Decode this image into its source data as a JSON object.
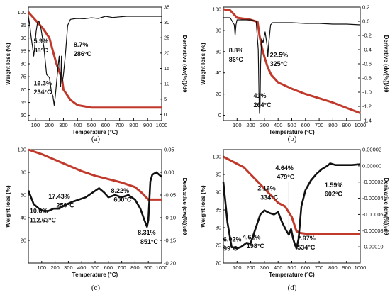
{
  "colors": {
    "weight_loss": "#c0392b",
    "derivative": "#111111",
    "axis": "#111111"
  },
  "chart_data": [
    {
      "type": "line",
      "panel_label": "(a)",
      "xlabel": "Temperature (°C)",
      "ylabel": "Weight loss (%)",
      "y2label": "Derivative (dw(%))/dθ",
      "xlim": [
        50,
        1000
      ],
      "ylim": [
        58,
        102
      ],
      "y2lim": [
        -2,
        35
      ],
      "x_ticks": [
        "100",
        "200",
        "300",
        "400",
        "500",
        "600",
        "700",
        "800",
        "900",
        "1000"
      ],
      "y_ticks": [
        "60",
        "65",
        "70",
        "75",
        "80",
        "85",
        "90",
        "95",
        "100"
      ],
      "y2_ticks": [
        "0",
        "5",
        "10",
        "15",
        "20",
        "25",
        "30",
        "35"
      ],
      "series": [
        {
          "axis": "left",
          "style": "thick",
          "x": [
            50,
            100,
            150,
            200,
            220,
            250,
            270,
            290,
            300,
            350,
            400,
            450,
            500,
            600,
            700,
            800,
            900,
            1000
          ],
          "y": [
            100,
            97,
            94,
            90,
            86,
            80,
            77,
            74,
            70,
            66,
            64,
            63.5,
            63,
            63,
            63,
            63,
            63,
            63
          ]
        },
        {
          "axis": "right",
          "style": "thin",
          "x": [
            50,
            60,
            70,
            80,
            88,
            95,
            105,
            115,
            125,
            140,
            160,
            180,
            200,
            215,
            225,
            234,
            242,
            250,
            262,
            270,
            280,
            286,
            290,
            300,
            315,
            330,
            350,
            380,
            400,
            450,
            500,
            550,
            600,
            650,
            700,
            750,
            800,
            850,
            900,
            950,
            1000
          ],
          "y": [
            32,
            29,
            25,
            22,
            19,
            22,
            27,
            30,
            30.5,
            28,
            22,
            13,
            12,
            7,
            6,
            3,
            6,
            10,
            16,
            19,
            9,
            19,
            10,
            13,
            20,
            29,
            31,
            31.2,
            31.3,
            31.2,
            31.5,
            31.3,
            32,
            31.6,
            31.8,
            32,
            32,
            32,
            32,
            32,
            32
          ]
        }
      ],
      "annotations": [
        "5.9%",
        "88°C",
        "16.3%",
        "234°C",
        "8.7%",
        "286°C"
      ]
    },
    {
      "type": "line",
      "panel_label": "(b)",
      "xlabel": "Temperature (°C)",
      "ylabel": "Weight loss (%)",
      "y2label": "Derivative (dw(%))/dθ",
      "xlim": [
        0,
        1000
      ],
      "ylim": [
        -5,
        102
      ],
      "y2lim": [
        -1.4,
        0.2
      ],
      "x_ticks": [
        "100",
        "200",
        "300",
        "400",
        "500",
        "600",
        "700",
        "800",
        "900",
        "1000"
      ],
      "y_ticks": [
        "0",
        "20",
        "40",
        "60",
        "80",
        "100"
      ],
      "y2_ticks": [
        "0.2",
        "0.0",
        "-0.2",
        "-0.4",
        "-0.6",
        "-0.8",
        "-1.0",
        "-1.2",
        "-1.4"
      ],
      "series": [
        {
          "axis": "left",
          "style": "thick",
          "x": [
            0,
            50,
            100,
            150,
            200,
            250,
            264,
            280,
            300,
            325,
            350,
            400,
            450,
            500,
            600,
            700,
            800,
            900,
            1000
          ],
          "y": [
            100,
            99,
            92,
            91,
            90,
            88,
            75,
            65,
            55,
            45,
            38,
            31,
            28,
            25,
            20,
            16,
            12,
            7,
            2
          ]
        },
        {
          "axis": "right",
          "style": "thin",
          "x": [
            0,
            50,
            80,
            86,
            92,
            100,
            120,
            160,
            200,
            240,
            255,
            260,
            264,
            268,
            272,
            280,
            290,
            305,
            320,
            325,
            332,
            345,
            360,
            400,
            450,
            500,
            600,
            700,
            800,
            900,
            1000
          ],
          "y": [
            0.05,
            0.05,
            -0.05,
            -0.2,
            -0.05,
            0.02,
            0.02,
            0.02,
            0.02,
            0.0,
            -0.4,
            -1.0,
            -1.3,
            -1.2,
            -0.6,
            -0.25,
            -0.3,
            -0.15,
            -0.35,
            -0.5,
            -0.3,
            -0.05,
            -0.02,
            -0.02,
            -0.02,
            -0.02,
            -0.03,
            -0.03,
            -0.04,
            -0.04,
            -0.05
          ]
        }
      ],
      "annotations": [
        "8.8%",
        "86°C",
        "22.5%",
        "325°C",
        "41%",
        "264°C"
      ]
    },
    {
      "type": "line",
      "panel_label": "(c)",
      "xlabel": "Temperature (°C)",
      "ylabel": "Weight loss (%)",
      "y2label": "Derivative (dw(%))/dθ",
      "xlim": [
        0,
        1000
      ],
      "ylim": [
        0,
        100
      ],
      "y2lim": [
        -0.2,
        0.05
      ],
      "x_ticks": [
        "100",
        "200",
        "300",
        "400",
        "500",
        "600",
        "700",
        "800",
        "900",
        "1000"
      ],
      "y_ticks": [
        "20",
        "40",
        "60",
        "80",
        "100"
      ],
      "y2_ticks": [
        "0.05",
        "0.00",
        "-0.05",
        "-0.10",
        "-0.15",
        "-0.20"
      ],
      "series": [
        {
          "axis": "left",
          "style": "thick",
          "x": [
            0,
            100,
            200,
            300,
            400,
            500,
            600,
            700,
            800,
            850,
            900,
            950,
            1000
          ],
          "y": [
            100,
            96,
            91,
            86,
            81,
            77,
            74,
            71,
            67,
            62,
            56,
            56,
            56
          ]
        },
        {
          "axis": "right",
          "style": "thick",
          "x": [
            0,
            40,
            80,
            110,
            150,
            190,
            230,
            260,
            290,
            330,
            380,
            430,
            480,
            530,
            570,
            600,
            650,
            700,
            750,
            800,
            840,
            870,
            890,
            900,
            915,
            930,
            960,
            1000
          ],
          "y": [
            -0.04,
            -0.07,
            -0.08,
            -0.085,
            -0.085,
            -0.08,
            -0.08,
            -0.075,
            -0.07,
            -0.065,
            -0.06,
            -0.055,
            -0.045,
            -0.035,
            -0.045,
            -0.055,
            -0.05,
            -0.055,
            -0.05,
            -0.06,
            -0.08,
            -0.105,
            -0.12,
            -0.105,
            -0.02,
            -0.005,
            0.0,
            -0.01
          ]
        }
      ],
      "annotations": [
        "10.6%",
        "112.63°C",
        "17.43%",
        "250°C",
        "8.22%",
        "600°C",
        "8.31%",
        "851°C"
      ]
    },
    {
      "type": "line",
      "panel_label": "(d)",
      "xlabel": "Temperature (°C)",
      "ylabel": "Weight loss (%)",
      "y2label": "Derivative (dw(%))/dθ",
      "xlim": [
        0,
        1000
      ],
      "ylim": [
        70,
        102
      ],
      "y2lim": [
        -0.00012,
        2e-05
      ],
      "x_ticks": [
        "100",
        "200",
        "300",
        "400",
        "500",
        "600",
        "700",
        "800",
        "900",
        "1000"
      ],
      "y_ticks": [
        "70",
        "75",
        "80",
        "85",
        "90",
        "95",
        "100"
      ],
      "y2_ticks": [
        "0.00002",
        "0.00000",
        "-0.00002",
        "-0.00004",
        "-0.00006",
        "-0.00008",
        "-0.00010"
      ],
      "series": [
        {
          "axis": "left",
          "style": "thick",
          "x": [
            0,
            50,
            100,
            150,
            200,
            250,
            300,
            350,
            400,
            450,
            500,
            534,
            560,
            600,
            650,
            700,
            800,
            900,
            1000
          ],
          "y": [
            100,
            99,
            98,
            97,
            95,
            93,
            91,
            89,
            87,
            86,
            83,
            79,
            78.5,
            78.3,
            78.2,
            78.2,
            78.2,
            78.2,
            78.2
          ]
        },
        {
          "axis": "right",
          "style": "thick",
          "x": [
            0,
            30,
            60,
            99,
            130,
            170,
            198,
            230,
            270,
            300,
            334,
            370,
            400,
            430,
            460,
            479,
            495,
            510,
            525,
            534,
            550,
            570,
            600,
            640,
            680,
            720,
            760,
            780,
            820,
            880,
            940,
            1000
          ],
          "y": [
            -2e-05,
            -7e-05,
            -0.0001,
            -0.000102,
            -0.0001,
            -9.5e-05,
            -9.6e-05,
            -8e-05,
            -6e-05,
            -5.5e-05,
            -5.8e-05,
            -6e-05,
            -5.7e-05,
            -7e-05,
            -8e-05,
            -8.5e-05,
            -7.8e-05,
            -9e-05,
            -9.8e-05,
            -0.000102,
            -9e-05,
            -5e-05,
            -3e-05,
            -1.8e-05,
            -1e-05,
            -4e-06,
            0.0,
            3e-06,
            1e-06,
            1e-06,
            1e-06,
            2e-06
          ]
        }
      ],
      "annotations": [
        "6.02%",
        "99°C",
        "4.62%",
        "198°C",
        "2.16%",
        "334°C",
        "4.64%",
        "479°C",
        "1.59%",
        "602°C",
        "2.97%",
        "534°C"
      ]
    }
  ]
}
